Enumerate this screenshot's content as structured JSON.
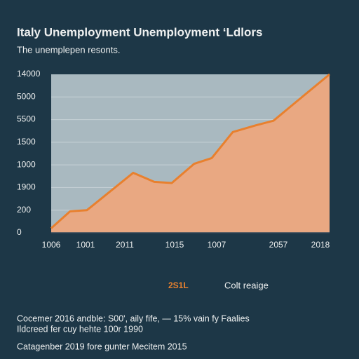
{
  "chart_data": {
    "type": "area",
    "title": "Italy Unemployment Unemployment ‘Ldlors",
    "subtitle": "The unemplepen resonts.",
    "categories": [
      null,
      null,
      null,
      null,
      null,
      null,
      null,
      null,
      null,
      null,
      null,
      null,
      null
    ],
    "series": [
      {
        "name": "2S1L",
        "color": "#e8802e",
        "fill": "#e9a882",
        "values": [
          400,
          1900,
          2000,
          5300,
          4500,
          4400,
          6100,
          6600,
          8900,
          9500,
          9900,
          11700,
          14000
        ]
      }
    ],
    "ylim": [
      0,
      14000
    ],
    "y_axis_labels": [
      "14000",
      "5000",
      "5500",
      "1500",
      "1000",
      "1900",
      "200",
      "0"
    ],
    "x_axis_labels": [
      "1006",
      "1001",
      "2011",
      "1015",
      "1007",
      "2057",
      "2018"
    ],
    "legend_extra": "Colt reaige",
    "notes": [
      "Cocemer 2016 andble: S00', aily fife, — 15% vain fy Faalies",
      "Ildcreed fer cuy hehte 100r 1990",
      "Catagenber 2019 fore gunter Mecitem 2015"
    ],
    "plot_background": "#a9b9c0",
    "grid": true
  }
}
